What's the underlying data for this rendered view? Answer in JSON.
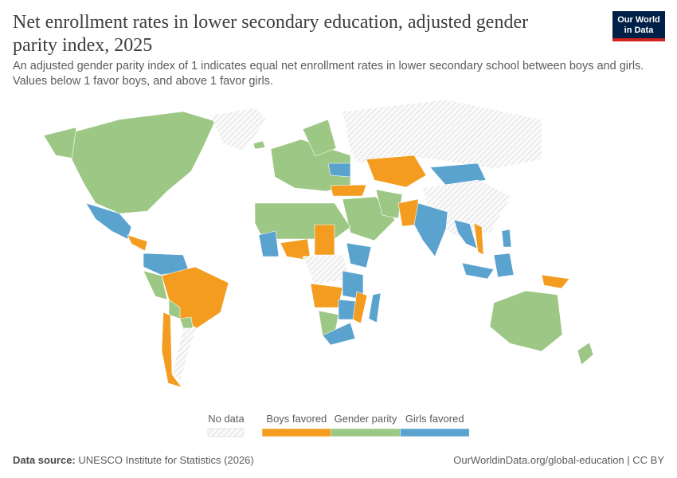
{
  "header": {
    "title": "Net enrollment rates in lower secondary education, adjusted gender parity index, 2025",
    "subtitle": "An adjusted gender parity index of 1 indicates equal net enrollment rates in lower secondary school between boys and girls. Values below 1 favor boys, and above 1 favor girls.",
    "logo": [
      "Our World",
      "in Data"
    ]
  },
  "legend": {
    "no_data": "No data",
    "items": [
      {
        "label": "Boys favored",
        "color": "#f39c1f"
      },
      {
        "label": "Gender parity",
        "color": "#9dc784"
      },
      {
        "label": "Girls favored",
        "color": "#5ba3cf"
      }
    ]
  },
  "footer": {
    "source_label": "Data source:",
    "source": "UNESCO Institute for Statistics (2026)",
    "url": "OurWorldinData.org/global-education | CC BY"
  }
}
